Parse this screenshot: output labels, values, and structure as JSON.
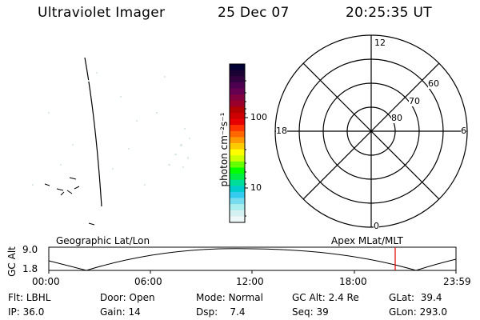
{
  "header": {
    "instrument": "Ultraviolet Imager",
    "date": "25 Dec 07",
    "time": "20:25:35 UT"
  },
  "colorbar": {
    "tick_labels": [
      "100",
      "10"
    ],
    "unit_label": "photon cm⁻²s⁻¹",
    "colors": [
      "#000033",
      "#1a0033",
      "#33003f",
      "#4d0050",
      "#660050",
      "#800040",
      "#99002a",
      "#b30000",
      "#cc0000",
      "#e60000",
      "#ff3300",
      "#ff6600",
      "#ff9900",
      "#ffcc00",
      "#ffff00",
      "#ccff00",
      "#66ff00",
      "#00ff00",
      "#00ee44",
      "#00dd99",
      "#00cccc",
      "#33ccee",
      "#77ddee",
      "#aaeeee",
      "#d5f0f0",
      "#eef7f7"
    ]
  },
  "polar_plot": {
    "mlt_labels": {
      "top": "12",
      "left": "18",
      "right": "6",
      "bottom": "0"
    },
    "lat_labels": [
      "60",
      "70",
      "80"
    ]
  },
  "timeline": {
    "left_label": "Geographic Lat/Lon",
    "right_label": "Apex MLat/MLT",
    "axis_title": "GC Alt",
    "y_ticks": [
      "9.0",
      "1.8"
    ],
    "x_ticks": [
      "00:00",
      "06:00",
      "12:00",
      "18:00",
      "23:59"
    ],
    "marker_color": "#e00000"
  },
  "status": {
    "row1": [
      {
        "label": "Flt:",
        "value": "LBHL"
      },
      {
        "label": "Door:",
        "value": "Open"
      },
      {
        "label": "Mode:",
        "value": "Normal"
      },
      {
        "label": "GC Alt:",
        "value": "2.4 Re"
      },
      {
        "label": "GLat:",
        "value": "39.4"
      }
    ],
    "row2": [
      {
        "label": "IP:",
        "value": "36.0"
      },
      {
        "label": "Gain:",
        "value": "14"
      },
      {
        "label": "Dsp:",
        "value": "7.4"
      },
      {
        "label": "Seq:",
        "value": "39"
      },
      {
        "label": "GLon:",
        "value": "293.0"
      }
    ]
  }
}
